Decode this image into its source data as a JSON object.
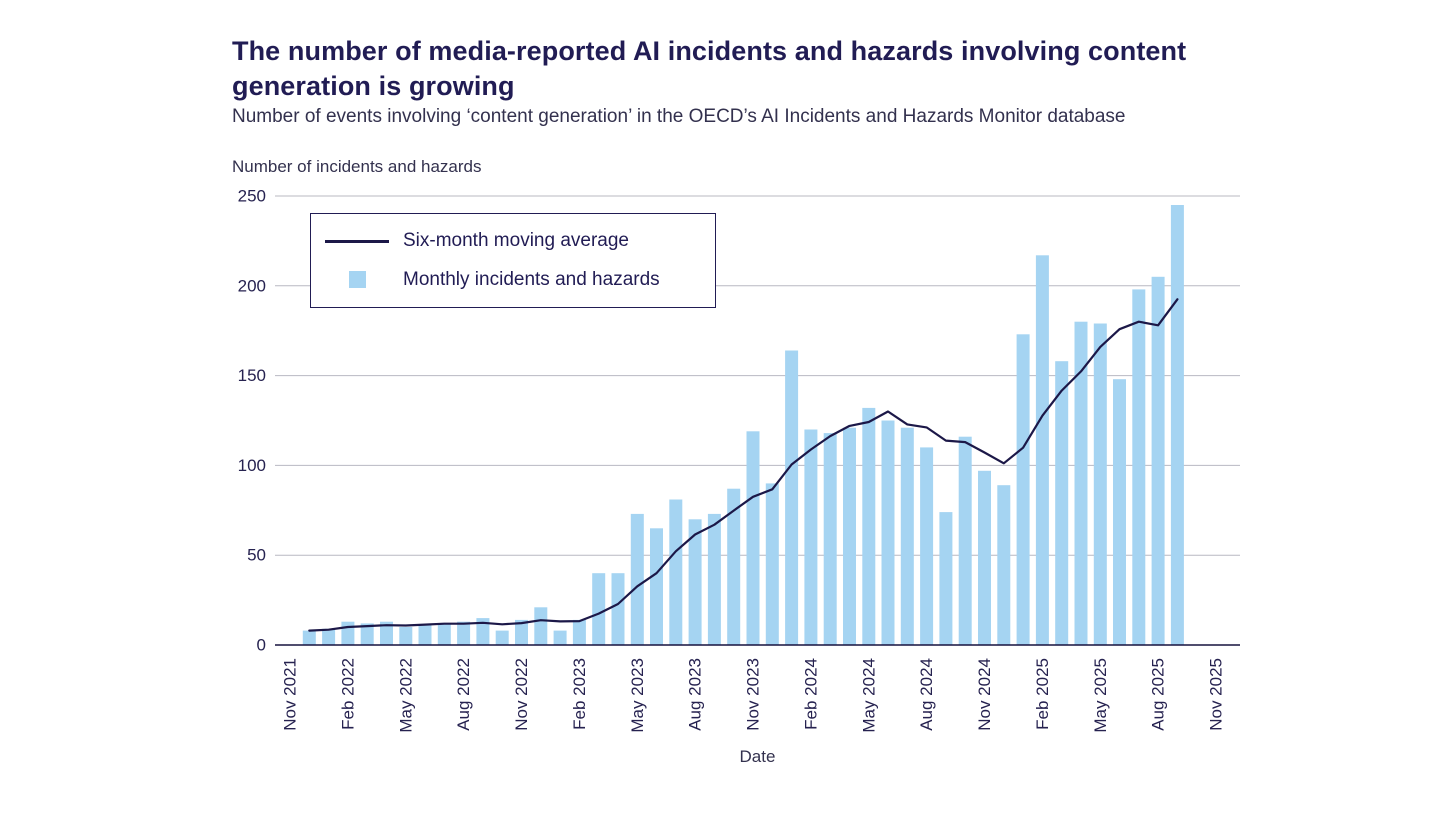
{
  "header": {
    "title": "The number of media-reported AI incidents and hazards involving content generation is growing",
    "subtitle": "Number of events involving ‘content generation’ in the OECD’s AI Incidents and Hazards Monitor database"
  },
  "legend": {
    "entries": [
      "Six-month moving average",
      "Monthly incidents and hazards"
    ]
  },
  "chart_data": {
    "type": "bar",
    "title": "The number of media-reported AI incidents and hazards involving content generation is growing",
    "subtitle": "Number of events involving ‘content generation’ in the OECD’s AI Incidents and Hazards Monitor database",
    "ylabel": "Number of incidents and hazards",
    "xlabel": "Date",
    "ylim": [
      0,
      250
    ],
    "yticks": [
      0,
      50,
      100,
      150,
      200,
      250
    ],
    "grid": "horizontal",
    "legend_position": "top-left",
    "x_tick_labels": [
      "Nov 2021",
      "Feb 2022",
      "May 2022",
      "Aug 2022",
      "Nov 2022",
      "Feb 2023",
      "May 2023",
      "Aug 2023",
      "Nov 2023",
      "Feb 2024",
      "May 2024",
      "Aug 2024",
      "Nov 2024",
      "Feb 2025",
      "May 2025",
      "Aug 2025",
      "Nov 2025"
    ],
    "months": [
      "Dec 2021",
      "Jan 2022",
      "Feb 2022",
      "Mar 2022",
      "Apr 2022",
      "May 2022",
      "Jun 2022",
      "Jul 2022",
      "Aug 2022",
      "Sep 2022",
      "Oct 2022",
      "Nov 2022",
      "Dec 2022",
      "Jan 2023",
      "Feb 2023",
      "Mar 2023",
      "Apr 2023",
      "May 2023",
      "Jun 2023",
      "Jul 2023",
      "Aug 2023",
      "Sep 2023",
      "Oct 2023",
      "Nov 2023",
      "Dec 2023",
      "Jan 2024",
      "Feb 2024",
      "Mar 2024",
      "Apr 2024",
      "May 2024",
      "Jun 2024",
      "Jul 2024",
      "Aug 2024",
      "Sep 2024",
      "Oct 2024",
      "Nov 2024",
      "Dec 2024",
      "Jan 2025",
      "Feb 2025",
      "Mar 2025",
      "Apr 2025",
      "May 2025",
      "Jun 2025",
      "Jul 2025",
      "Aug 2025",
      "Sep 2025"
    ],
    "series": [
      {
        "name": "Monthly incidents and hazards",
        "type": "bar",
        "color": "#a5d4f2",
        "values": [
          8,
          9,
          13,
          12,
          13,
          10,
          11,
          12,
          13,
          15,
          8,
          14,
          21,
          8,
          14,
          40,
          40,
          73,
          65,
          81,
          70,
          73,
          87,
          119,
          90,
          164,
          120,
          118,
          121,
          132,
          125,
          121,
          110,
          74,
          116,
          97,
          89,
          173,
          217,
          158,
          180,
          179,
          148,
          198,
          205,
          245
        ]
      },
      {
        "name": "Six-month moving average",
        "type": "line",
        "color": "#1c1848",
        "derivation": "trailing six-month mean of monthly values (partial windows at series start)"
      }
    ],
    "colors": {
      "grid": "#b8b8c2",
      "axis": "#16123f",
      "tick": "#262250"
    }
  }
}
